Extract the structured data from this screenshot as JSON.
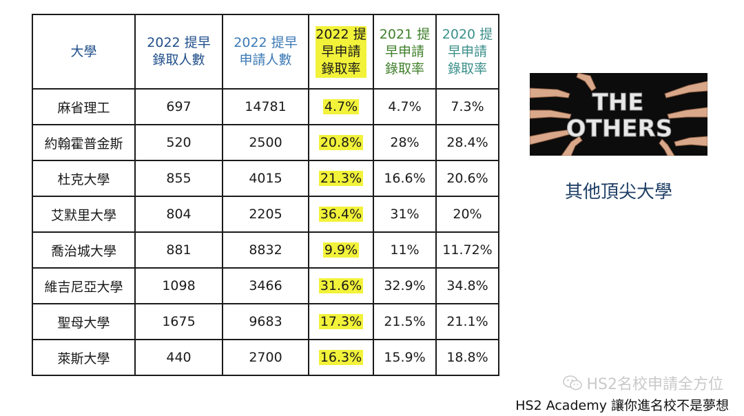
{
  "table": {
    "headers": [
      {
        "line1": "大學",
        "line2": "",
        "line3": ""
      },
      {
        "line1": "2022 提早",
        "line2": "錄取人數",
        "line3": ""
      },
      {
        "line1": "2022 提早",
        "line2": "申請人數",
        "line3": ""
      },
      {
        "line1": "2022 提",
        "line2": "早申請",
        "line3": "錄取率"
      },
      {
        "line1": "2021 提",
        "line2": "早申請",
        "line3": "錄取率"
      },
      {
        "line1": "2020 提",
        "line2": "早申請",
        "line3": "錄取率"
      }
    ],
    "rows": [
      {
        "univ": "麻省理工",
        "admitted": "697",
        "applied": "14781",
        "rate2022": "4.7%",
        "rate2021": "4.7%",
        "rate2020": "7.3%"
      },
      {
        "univ": "約翰霍普金斯",
        "admitted": "520",
        "applied": "2500",
        "rate2022": "20.8%",
        "rate2021": "28%",
        "rate2020": "28.4%"
      },
      {
        "univ": "杜克大學",
        "admitted": "855",
        "applied": "4015",
        "rate2022": "21.3%",
        "rate2021": "16.6%",
        "rate2020": "20.6%"
      },
      {
        "univ": "艾默里大學",
        "admitted": "804",
        "applied": "2205",
        "rate2022": "36.4%",
        "rate2021": "31%",
        "rate2020": "20%"
      },
      {
        "univ": "喬治城大學",
        "admitted": "881",
        "applied": "8832",
        "rate2022": "9.9%",
        "rate2021": "11%",
        "rate2020": "11.72%"
      },
      {
        "univ": "維吉尼亞大學",
        "admitted": "1098",
        "applied": "3466",
        "rate2022": "31.6%",
        "rate2021": "32.9%",
        "rate2020": "34.8%"
      },
      {
        "univ": "聖母大學",
        "admitted": "1675",
        "applied": "9683",
        "rate2022": "17.3%",
        "rate2021": "21.5%",
        "rate2020": "21.1%"
      },
      {
        "univ": "萊斯大學",
        "admitted": "440",
        "applied": "2700",
        "rate2022": "16.3%",
        "rate2021": "15.9%",
        "rate2020": "18.8%"
      }
    ]
  },
  "image": {
    "text_line1": "THE",
    "text_line2": "OTHERS"
  },
  "side_title": "其他頂尖大學",
  "watermark": "HS2名校申請全方位",
  "footer": "HS2 Academy 讓你進名校不是夢想",
  "colors": {
    "highlight": "#f2f23a",
    "header_blue": "#1f4e8a",
    "header_green": "#3f7f2a",
    "header_teal": "#3a8f8a"
  }
}
